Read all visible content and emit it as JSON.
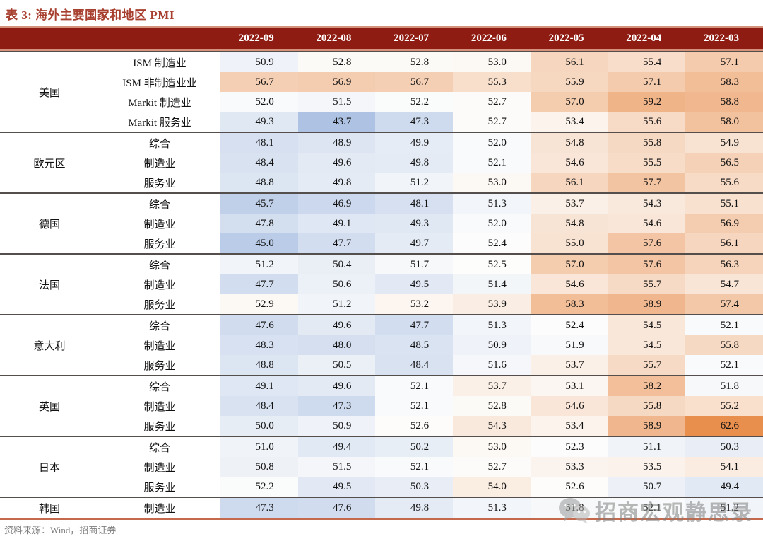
{
  "title": "表 3: 海外主要国家和地区 PMI",
  "source_note": "资料来源：Wind，招商证券",
  "watermark": {
    "icon": "wechat-icon",
    "text": "招商宏观静思录"
  },
  "colors": {
    "header_bg": "#8e1c12",
    "header_text": "#ffffff",
    "title_text": "#a84030",
    "salmon_border": "#d4917c",
    "coral_bottom_border": "#c4694c",
    "group_divider": "#544f4d",
    "source_text": "#7f7f7f",
    "heat_low": "#aec3e4",
    "heat_mid": "#fdfdfc",
    "heat_high": "#e98f4e"
  },
  "chart_data": {
    "type": "heatmap-table",
    "title": "表 3: 海外主要国家和地区 PMI",
    "columns": [
      "2022-09",
      "2022-08",
      "2022-07",
      "2022-06",
      "2022-05",
      "2022-04",
      "2022-03"
    ],
    "heat_scale": {
      "min": 43.7,
      "mid": 52.5,
      "max": 62.6
    },
    "groups": [
      {
        "country": "美国",
        "rows": [
          {
            "indicator": "ISM 制造业",
            "values": [
              "50.9",
              "52.8",
              "52.8",
              "53.0",
              "56.1",
              "55.4",
              "57.1"
            ]
          },
          {
            "indicator": "ISM 非制造业业",
            "values": [
              "56.7",
              "56.9",
              "56.7",
              "55.3",
              "55.9",
              "57.1",
              "58.3"
            ]
          },
          {
            "indicator": "Markit 制造业",
            "values": [
              "52.0",
              "51.5",
              "52.2",
              "52.7",
              "57.0",
              "59.2",
              "58.8"
            ]
          },
          {
            "indicator": "Markit 服务业",
            "values": [
              "49.3",
              "43.7",
              "47.3",
              "52.7",
              "53.4",
              "55.6",
              "58.0"
            ]
          }
        ]
      },
      {
        "country": "欧元区",
        "rows": [
          {
            "indicator": "综合",
            "values": [
              "48.1",
              "48.9",
              "49.9",
              "52.0",
              "54.8",
              "55.8",
              "54.9"
            ]
          },
          {
            "indicator": "制造业",
            "values": [
              "48.4",
              "49.6",
              "49.8",
              "52.1",
              "54.6",
              "55.5",
              "56.5"
            ]
          },
          {
            "indicator": "服务业",
            "values": [
              "48.8",
              "49.8",
              "51.2",
              "53.0",
              "56.1",
              "57.7",
              "55.6"
            ]
          }
        ]
      },
      {
        "country": "德国",
        "rows": [
          {
            "indicator": "综合",
            "values": [
              "45.7",
              "46.9",
              "48.1",
              "51.3",
              "53.7",
              "54.3",
              "55.1"
            ]
          },
          {
            "indicator": "制造业",
            "values": [
              "47.8",
              "49.1",
              "49.3",
              "52.0",
              "54.8",
              "54.6",
              "56.9"
            ]
          },
          {
            "indicator": "服务业",
            "values": [
              "45.0",
              "47.7",
              "49.7",
              "52.4",
              "55.0",
              "57.6",
              "56.1"
            ]
          }
        ]
      },
      {
        "country": "法国",
        "rows": [
          {
            "indicator": "综合",
            "values": [
              "51.2",
              "50.4",
              "51.7",
              "52.5",
              "57.0",
              "57.6",
              "56.3"
            ]
          },
          {
            "indicator": "制造业",
            "values": [
              "47.7",
              "50.6",
              "49.5",
              "51.4",
              "54.6",
              "55.7",
              "54.7"
            ]
          },
          {
            "indicator": "服务业",
            "values": [
              "52.9",
              "51.2",
              "53.2",
              "53.9",
              "58.3",
              "58.9",
              "57.4"
            ]
          }
        ]
      },
      {
        "country": "意大利",
        "rows": [
          {
            "indicator": "综合",
            "values": [
              "47.6",
              "49.6",
              "47.7",
              "51.3",
              "52.4",
              "54.5",
              "52.1"
            ]
          },
          {
            "indicator": "制造业",
            "values": [
              "48.3",
              "48.0",
              "48.5",
              "50.9",
              "51.9",
              "54.5",
              "55.8"
            ]
          },
          {
            "indicator": "服务业",
            "values": [
              "48.8",
              "50.5",
              "48.4",
              "51.6",
              "53.7",
              "55.7",
              "52.1"
            ]
          }
        ]
      },
      {
        "country": "英国",
        "rows": [
          {
            "indicator": "综合",
            "values": [
              "49.1",
              "49.6",
              "52.1",
              "53.7",
              "53.1",
              "58.2",
              "51.8"
            ]
          },
          {
            "indicator": "制造业",
            "values": [
              "48.4",
              "47.3",
              "52.1",
              "52.8",
              "54.6",
              "55.8",
              "55.2"
            ]
          },
          {
            "indicator": "服务业",
            "values": [
              "50.0",
              "50.9",
              "52.6",
              "54.3",
              "53.4",
              "58.9",
              "62.6"
            ]
          }
        ]
      },
      {
        "country": "日本",
        "rows": [
          {
            "indicator": "综合",
            "values": [
              "51.0",
              "49.4",
              "50.2",
              "53.0",
              "52.3",
              "51.1",
              "50.3"
            ]
          },
          {
            "indicator": "制造业",
            "values": [
              "50.8",
              "51.5",
              "52.1",
              "52.7",
              "53.3",
              "53.5",
              "54.1"
            ]
          },
          {
            "indicator": "服务业",
            "values": [
              "52.2",
              "49.5",
              "50.3",
              "54.0",
              "52.6",
              "50.7",
              "49.4"
            ]
          }
        ]
      },
      {
        "country": "韩国",
        "rows": [
          {
            "indicator": "制造业",
            "values": [
              "47.3",
              "47.6",
              "49.8",
              "51.3",
              "51.8",
              "52.1",
              "51.2"
            ]
          }
        ]
      }
    ]
  }
}
